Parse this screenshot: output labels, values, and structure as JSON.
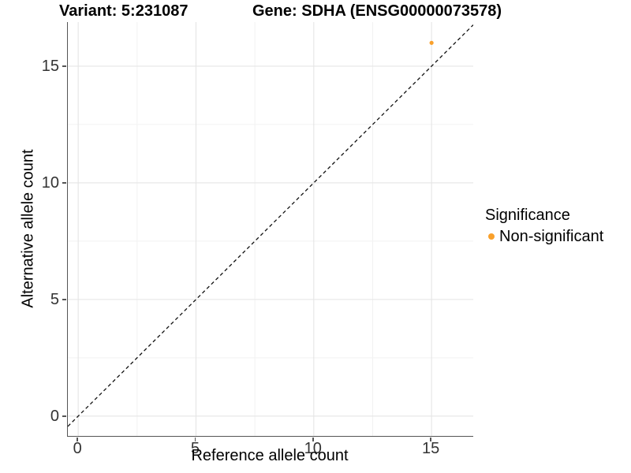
{
  "title": {
    "variant": "Variant: 5:231087",
    "gene": "Gene: SDHA (ENSG00000073578)"
  },
  "axes": {
    "x": {
      "label": "Reference allele count"
    },
    "y": {
      "label": "Alternative allele count"
    }
  },
  "legend": {
    "title": "Significance",
    "items": [
      {
        "label": "Non-significant",
        "color": "#F9A02B"
      }
    ]
  },
  "chart_data": {
    "type": "scatter",
    "title": "Variant: 5:231087   Gene: SDHA (ENSG00000073578)",
    "xlabel": "Reference allele count",
    "ylabel": "Alternative allele count",
    "xlim": [
      -0.44,
      16.77
    ],
    "ylim": [
      -0.85,
      16.89
    ],
    "x_major_ticks": [
      0,
      5,
      10,
      15
    ],
    "y_major_ticks": [
      0,
      5,
      10,
      15
    ],
    "grid": "major and minor gridlines, white background",
    "legend_position": "right",
    "series": [
      {
        "name": "Non-significant",
        "color": "#F9A02B",
        "points": [
          {
            "x": 15,
            "y": 16
          }
        ]
      }
    ],
    "reference_line": {
      "type": "identity (y = x)",
      "style": "dashed",
      "color": "#111111"
    }
  }
}
